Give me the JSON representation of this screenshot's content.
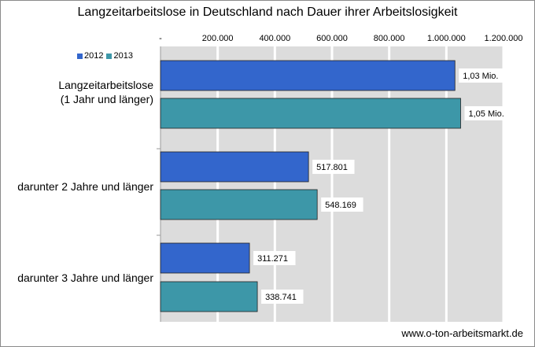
{
  "chart_data": {
    "type": "bar",
    "orientation": "horizontal",
    "title": "Langzeitarbeitslose in Deutschland nach Dauer ihrer Arbeitslosigkeit",
    "categories": [
      [
        "Langzeitarbeitslose",
        "(1 Jahr und länger)"
      ],
      [
        "darunter 2 Jahre und länger"
      ],
      [
        "darunter 3 Jahre und länger"
      ]
    ],
    "series": [
      {
        "name": "2012",
        "color": "#3366cc",
        "values": [
          1030000,
          517801,
          311271
        ],
        "labels": [
          "1,03 Mio.",
          "517.801",
          "311.271"
        ]
      },
      {
        "name": "2013",
        "color": "#3d97a8",
        "values": [
          1050000,
          548169,
          338741
        ],
        "labels": [
          "1,05 Mio.",
          "548.169",
          "338.741"
        ]
      }
    ],
    "xlim": [
      0,
      1200000
    ],
    "x_ticks": [
      0,
      200000,
      400000,
      600000,
      800000,
      1000000,
      1200000
    ],
    "x_tick_labels": [
      "-",
      "200.000",
      "400.000",
      "600.000",
      "800.000",
      "1.000.000",
      "1.200.000"
    ],
    "axis_position": "top",
    "grid": true,
    "legend_position": "top-left"
  },
  "source": "www.o-ton-arbeitsmarkt.de"
}
